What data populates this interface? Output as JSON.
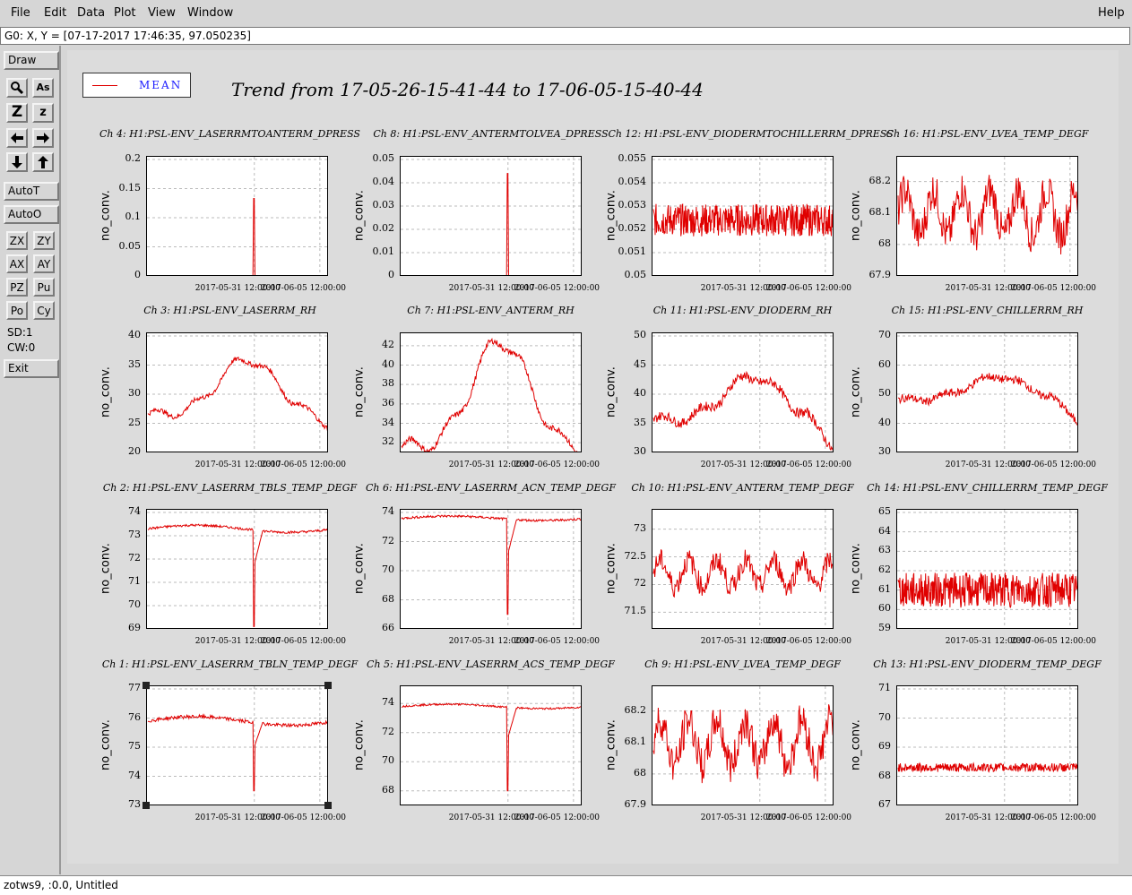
{
  "menubar": {
    "file": "File",
    "edit": "Edit",
    "data": "Data",
    "plot": "Plot",
    "view": "View",
    "window": "Window",
    "help": "Help"
  },
  "coords": "G0: X, Y = [07-17-2017 17:46:35, 97.050235]",
  "toolbar": {
    "draw": "Draw",
    "ascii": "As",
    "z_big": "Z",
    "z_small": "z",
    "autot": "AutoT",
    "autoo": "AutoO",
    "zx": "ZX",
    "zy": "ZY",
    "ax": "AX",
    "ay": "AY",
    "pz": "PZ",
    "pu": "Pu",
    "po": "Po",
    "cy": "Cy",
    "sd": "SD:1",
    "cw": "CW:0",
    "exit": "Exit"
  },
  "legend": {
    "label": "MEAN",
    "color": "#e00000"
  },
  "title": "Trend from 17-05-26-15-41-44 to 17-06-05-15-40-44",
  "status": "zotws9, :0.0, Untitled",
  "chart_data": [
    {
      "type": "line",
      "title": "Ch 4: H1:PSL-ENV_LASERRMTOANTERM_DPRESS",
      "ylabel": "no_conv.",
      "yticks": [
        "0.2",
        "0.15",
        "0.1",
        "0.05",
        "0"
      ],
      "ylim": [
        0,
        0.2
      ],
      "xticks": [
        "2017-05-31 12:00:00",
        "2017-06-05 12:00:00"
      ],
      "shape": "spike",
      "base": 0,
      "spike": 0.133,
      "noise": 0
    },
    {
      "type": "line",
      "title": "Ch 8: H1:PSL-ENV_ANTERMTOLVEA_DPRESS",
      "ylabel": "no_conv.",
      "yticks": [
        "0.05",
        "0.04",
        "0.03",
        "0.02",
        "0.01",
        "0"
      ],
      "ylim": [
        0,
        0.05
      ],
      "xticks": [
        "2017-05-31 12:00:00",
        "2017-06-05 12:00:00"
      ],
      "shape": "spike",
      "base": 0,
      "spike": 0.044,
      "noise": 0
    },
    {
      "type": "line",
      "title": "Ch 12: H1:PSL-ENV_DIODERMTOCHILLERRM_DPRESS",
      "ylabel": "no_conv.",
      "yticks": [
        "0.055",
        "0.054",
        "0.053",
        "0.052",
        "0.051",
        "0.05"
      ],
      "ylim": [
        0.05,
        0.055
      ],
      "xticks": [
        "2017-05-31 12:00:00",
        "2017-06-05 12:00:00"
      ],
      "shape": "noisy",
      "base": 0.0524,
      "noise": 0.0007
    },
    {
      "type": "line",
      "title": "Ch 16: H1:PSL-ENV_LVEA_TEMP_DEGF",
      "ylabel": "no_conv.",
      "yticks": [
        "68.2",
        "68.1",
        "68",
        "67.9"
      ],
      "ylim": [
        67.9,
        68.27
      ],
      "xticks": [
        "2017-05-31 12:00:00",
        "2017-06-05 12:00:00"
      ],
      "shape": "wavy",
      "base": 68.1,
      "noise": 0.06
    },
    {
      "type": "line",
      "title": "Ch 3: H1:PSL-ENV_LASERRM_RH",
      "ylabel": "no_conv.",
      "yticks": [
        "40",
        "35",
        "30",
        "25",
        "20"
      ],
      "ylim": [
        20,
        40
      ],
      "xticks": [
        "2017-05-31 12:00:00",
        "2017-06-05 12:00:00"
      ],
      "shape": "hump",
      "base": 26.5,
      "peak": 36,
      "end": 25,
      "noise": 0.4
    },
    {
      "type": "line",
      "title": "Ch 7: H1:PSL-ENV_ANTERM_RH",
      "ylabel": "no_conv.",
      "yticks": [
        "42",
        "40",
        "38",
        "36",
        "34",
        "32"
      ],
      "ylim": [
        31,
        43
      ],
      "xticks": [
        "2017-05-31 12:00:00",
        "2017-06-05 12:00:00"
      ],
      "shape": "hump",
      "base": 31.5,
      "peak": 42.5,
      "end": 31.5,
      "noise": 0.3
    },
    {
      "type": "line",
      "title": "Ch 11: H1:PSL-ENV_DIODERM_RH",
      "ylabel": "no_conv.",
      "yticks": [
        "50",
        "45",
        "40",
        "35",
        "30"
      ],
      "ylim": [
        30,
        50
      ],
      "xticks": [
        "2017-05-31 12:00:00",
        "2017-06-05 12:00:00"
      ],
      "shape": "hump",
      "base": 35.5,
      "peak": 43,
      "end": 31,
      "noise": 0.8
    },
    {
      "type": "line",
      "title": "Ch 15: H1:PSL-ENV_CHILLERRM_RH",
      "ylabel": "no_conv.",
      "yticks": [
        "70",
        "60",
        "50",
        "40",
        "30"
      ],
      "ylim": [
        30,
        70
      ],
      "xticks": [
        "2017-05-31 12:00:00",
        "2017-06-05 12:00:00"
      ],
      "shape": "hump",
      "base": 48,
      "peak": 56,
      "end": 41,
      "noise": 1.4
    },
    {
      "type": "line",
      "title": "Ch 2: H1:PSL-ENV_LASERRM_TBLS_TEMP_DEGF",
      "ylabel": "no_conv.",
      "yticks": [
        "74",
        "73",
        "72",
        "71",
        "70",
        "69"
      ],
      "ylim": [
        69,
        74
      ],
      "xticks": [
        "2017-05-31 12:00:00",
        "2017-06-05 12:00:00"
      ],
      "shape": "flatdip",
      "base": 73.3,
      "dip": 69.1,
      "noise": 0.05
    },
    {
      "type": "line",
      "title": "Ch 6: H1:PSL-ENV_LASERRM_ACN_TEMP_DEGF",
      "ylabel": "no_conv.",
      "yticks": [
        "74",
        "72",
        "70",
        "68",
        "66"
      ],
      "ylim": [
        66,
        74
      ],
      "xticks": [
        "2017-05-31 12:00:00",
        "2017-06-05 12:00:00"
      ],
      "shape": "flatdip",
      "base": 73.6,
      "dip": 67,
      "noise": 0.08
    },
    {
      "type": "line",
      "title": "Ch 10: H1:PSL-ENV_ANTERM_TEMP_DEGF",
      "ylabel": "no_conv.",
      "yticks": [
        "73",
        "72.5",
        "72",
        "71.5"
      ],
      "ylim": [
        71.2,
        73.3
      ],
      "xticks": [
        "2017-05-31 12:00:00",
        "2017-06-05 12:00:00"
      ],
      "shape": "wavy",
      "base": 72.2,
      "noise": 0.2
    },
    {
      "type": "line",
      "title": "Ch 14: H1:PSL-ENV_CHILLERRM_TEMP_DEGF",
      "ylabel": "no_conv.",
      "yticks": [
        "65",
        "64",
        "63",
        "62",
        "61",
        "60",
        "59"
      ],
      "ylim": [
        59,
        65
      ],
      "xticks": [
        "2017-05-31 12:00:00",
        "2017-06-05 12:00:00"
      ],
      "shape": "noisy",
      "base": 61,
      "noise": 0.9
    },
    {
      "type": "line",
      "title": "Ch 1: H1:PSL-ENV_LASERRM_TBLN_TEMP_DEGF",
      "ylabel": "no_conv.",
      "yticks": [
        "77",
        "76",
        "75",
        "74",
        "73"
      ],
      "ylim": [
        73,
        77
      ],
      "xticks": [
        "2017-05-31 12:00:00",
        "2017-06-05 12:00:00"
      ],
      "shape": "flatdip",
      "base": 75.9,
      "dip": 73.5,
      "noise": 0.06
    },
    {
      "type": "line",
      "title": "Ch 5: H1:PSL-ENV_LASERRM_ACS_TEMP_DEGF",
      "ylabel": "no_conv.",
      "yticks": [
        "74",
        "72",
        "70",
        "68"
      ],
      "ylim": [
        67,
        75
      ],
      "xticks": [
        "2017-05-31 12:00:00",
        "2017-06-05 12:00:00"
      ],
      "shape": "flatdip",
      "base": 73.8,
      "dip": 68,
      "noise": 0.06
    },
    {
      "type": "line",
      "title": "Ch 9: H1:PSL-ENV_LVEA_TEMP_DEGF",
      "ylabel": "no_conv.",
      "yticks": [
        "68.2",
        "68.1",
        "68",
        "67.9"
      ],
      "ylim": [
        67.9,
        68.27
      ],
      "xticks": [
        "2017-05-31 12:00:00",
        "2017-06-05 12:00:00"
      ],
      "shape": "wavy",
      "base": 68.1,
      "noise": 0.06
    },
    {
      "type": "line",
      "title": "Ch 13: H1:PSL-ENV_DIODERM_TEMP_DEGF",
      "ylabel": "no_conv.",
      "yticks": [
        "71",
        "70",
        "69",
        "68",
        "67"
      ],
      "ylim": [
        67,
        71
      ],
      "xticks": [
        "2017-05-31 12:00:00",
        "2017-06-05 12:00:00"
      ],
      "shape": "noisy",
      "base": 68.3,
      "noise": 0.15
    }
  ]
}
